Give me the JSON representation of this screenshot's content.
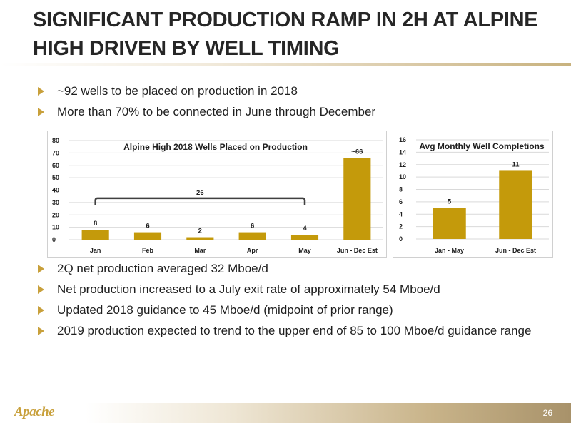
{
  "title": "SIGNIFICANT PRODUCTION RAMP IN 2H AT ALPINE HIGH DRIVEN BY WELL TIMING",
  "top_bullets": [
    "~92 wells to be placed on production in 2018",
    "More than 70% to be connected in June through December"
  ],
  "bottom_bullets": [
    "2Q net production averaged 32 Mboe/d",
    "Net production increased to a July exit rate of approximately 54 Mboe/d",
    "Updated 2018 guidance to 45 Mboe/d  (midpoint of prior range)",
    "2019 production expected to trend to the upper end of 85 to 100 Mboe/d guidance range"
  ],
  "colors": {
    "bar": "#c49a0b",
    "bullet": "#c8a03b",
    "bracket": "#404040"
  },
  "chart_data": [
    {
      "type": "bar",
      "title": "Alpine High 2018 Wells Placed on Production",
      "categories": [
        "Jan",
        "Feb",
        "Mar",
        "Apr",
        "May",
        "Jun - Dec Est"
      ],
      "values": [
        8,
        6,
        2,
        6,
        4,
        66
      ],
      "data_labels": [
        "8",
        "6",
        "2",
        "6",
        "4",
        "~66"
      ],
      "ylim": [
        0,
        80
      ],
      "yticks": [
        0,
        10,
        20,
        30,
        40,
        50,
        60,
        70,
        80
      ],
      "grid": true,
      "annotation": {
        "text": "26",
        "spans_categories": [
          "Jan",
          "May"
        ]
      }
    },
    {
      "type": "bar",
      "title": "Avg Monthly Well Completions",
      "categories": [
        "Jan - May",
        "Jun - Dec Est"
      ],
      "values": [
        5,
        11
      ],
      "data_labels": [
        "5",
        "11"
      ],
      "ylim": [
        0,
        16
      ],
      "yticks": [
        0,
        2,
        4,
        6,
        8,
        10,
        12,
        14,
        16
      ],
      "grid": true
    }
  ],
  "footer": {
    "logo": "Apache",
    "page_number": "26"
  }
}
